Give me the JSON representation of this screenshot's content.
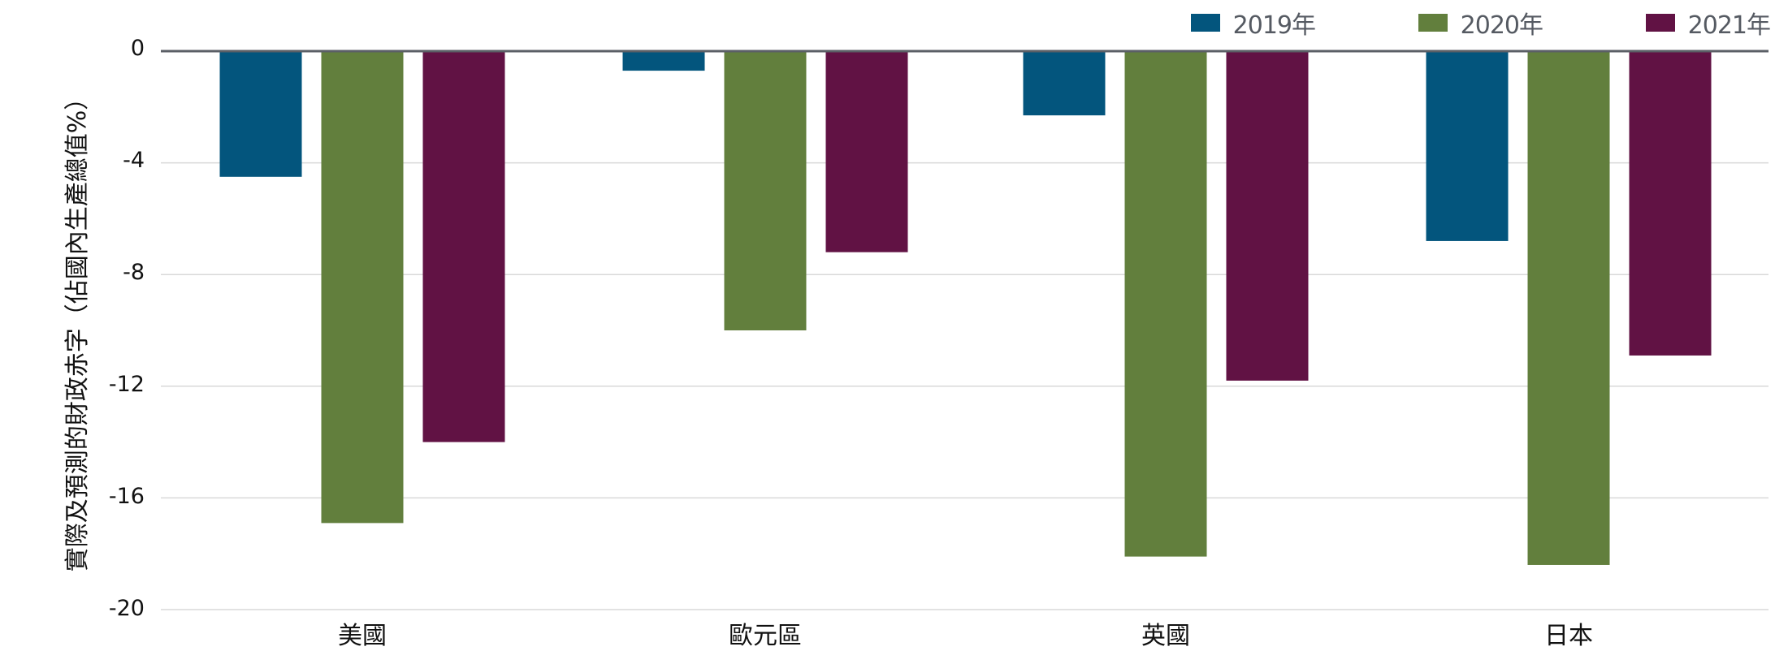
{
  "chart_data": {
    "type": "bar",
    "title": "",
    "xlabel": "",
    "ylabel": "實際及預測的財政赤字（佔國內生產總值%）",
    "categories": [
      "美國",
      "歐元區",
      "英國",
      "日本"
    ],
    "series": [
      {
        "name": "2019年",
        "color": "#03557d",
        "values": [
          -4.5,
          -0.7,
          -2.3,
          -6.8
        ]
      },
      {
        "name": "2020年",
        "color": "#627f3d",
        "values": [
          -16.9,
          -10.0,
          -18.1,
          -18.4
        ]
      },
      {
        "name": "2021年",
        "color": "#611244",
        "values": [
          -14.0,
          -7.2,
          -11.8,
          -10.9
        ]
      }
    ],
    "yticks": [
      0,
      -4,
      -8,
      -12,
      -16,
      -20
    ],
    "ylim": [
      -20,
      0
    ],
    "grid": true,
    "legend_position": "top-right"
  },
  "legend": [
    {
      "label": "2019年",
      "color": "#03557d"
    },
    {
      "label": "2020年",
      "color": "#627f3d"
    },
    {
      "label": "2021年",
      "color": "#611244"
    }
  ],
  "yaxis": {
    "title": "實際及預測的財政赤字（佔國內生產總值%）",
    "ticks": [
      "0",
      "-4",
      "-8",
      "-12",
      "-16",
      "-20"
    ]
  },
  "xaxis": {
    "labels": [
      "美國",
      "歐元區",
      "英國",
      "日本"
    ]
  },
  "style": {
    "zero_line_color": "#5b5f66",
    "grid_color": "#d9d9d9"
  }
}
